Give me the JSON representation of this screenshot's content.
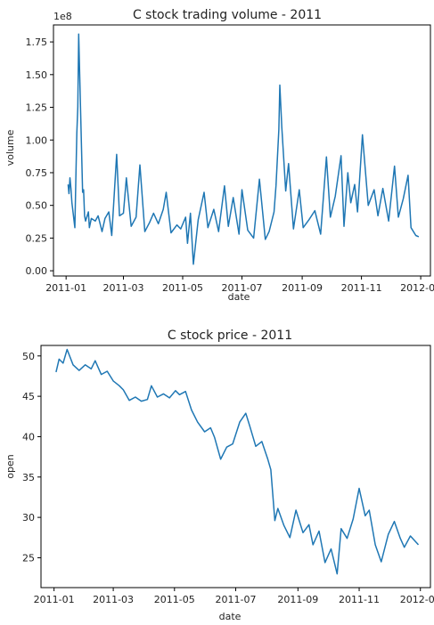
{
  "chart_data": [
    {
      "type": "line",
      "title": "C stock trading volume - 2011",
      "xlabel": "date",
      "ylabel": "volume",
      "offset_text": "1e8",
      "x_ticks": [
        "2011-01",
        "2011-03",
        "2011-05",
        "2011-07",
        "2011-09",
        "2011-11",
        "2012-01"
      ],
      "y_ticks": [
        "0.00",
        "0.25",
        "0.50",
        "0.75",
        "1.00",
        "1.25",
        "1.50",
        "1.75"
      ],
      "ylim": [
        -0.04,
        1.88
      ],
      "xlim": [
        "2010-12-19",
        "2012-01-11"
      ],
      "grid": false,
      "color": "#1f77b4",
      "unit_multiplier": 100000000,
      "series": [
        {
          "x": [
            "2011-01-03",
            "2011-01-04",
            "2011-01-05",
            "2011-01-06",
            "2011-01-07",
            "2011-01-10",
            "2011-01-11",
            "2011-01-12",
            "2011-01-13",
            "2011-01-14",
            "2011-01-18",
            "2011-01-19",
            "2011-01-20",
            "2011-01-21",
            "2011-01-24",
            "2011-01-25",
            "2011-01-27",
            "2011-01-31",
            "2011-02-03",
            "2011-02-07",
            "2011-02-10",
            "2011-02-14",
            "2011-02-17",
            "2011-02-22",
            "2011-02-25",
            "2011-03-01",
            "2011-03-04",
            "2011-03-09",
            "2011-03-14",
            "2011-03-18",
            "2011-03-23",
            "2011-03-28",
            "2011-04-01",
            "2011-04-06",
            "2011-04-11",
            "2011-04-14",
            "2011-04-19",
            "2011-04-25",
            "2011-04-29",
            "2011-05-04",
            "2011-05-06",
            "2011-05-09",
            "2011-05-12",
            "2011-05-17",
            "2011-05-23",
            "2011-05-27",
            "2011-06-02",
            "2011-06-07",
            "2011-06-13",
            "2011-06-17",
            "2011-06-22",
            "2011-06-28",
            "2011-07-01",
            "2011-07-07",
            "2011-07-13",
            "2011-07-19",
            "2011-07-25",
            "2011-07-29",
            "2011-08-03",
            "2011-08-05",
            "2011-08-08",
            "2011-08-09",
            "2011-08-11",
            "2011-08-15",
            "2011-08-18",
            "2011-08-23",
            "2011-08-29",
            "2011-09-02",
            "2011-09-08",
            "2011-09-14",
            "2011-09-20",
            "2011-09-26",
            "2011-09-30",
            "2011-10-05",
            "2011-10-11",
            "2011-10-14",
            "2011-10-18",
            "2011-10-21",
            "2011-10-25",
            "2011-10-28",
            "2011-11-02",
            "2011-11-08",
            "2011-11-14",
            "2011-11-18",
            "2011-11-23",
            "2011-11-29",
            "2011-12-05",
            "2011-12-09",
            "2011-12-14",
            "2011-12-19",
            "2011-12-22",
            "2011-12-27",
            "2011-12-30"
          ],
          "values": [
            0.66,
            0.59,
            0.71,
            0.63,
            0.52,
            0.33,
            0.7,
            1.05,
            1.25,
            1.81,
            0.6,
            0.62,
            0.42,
            0.38,
            0.45,
            0.33,
            0.4,
            0.38,
            0.42,
            0.3,
            0.4,
            0.45,
            0.27,
            0.89,
            0.42,
            0.44,
            0.71,
            0.34,
            0.41,
            0.81,
            0.3,
            0.37,
            0.44,
            0.36,
            0.47,
            0.6,
            0.29,
            0.35,
            0.32,
            0.41,
            0.21,
            0.44,
            0.05,
            0.39,
            0.6,
            0.33,
            0.47,
            0.3,
            0.65,
            0.34,
            0.56,
            0.28,
            0.62,
            0.31,
            0.25,
            0.7,
            0.24,
            0.3,
            0.45,
            0.65,
            1.08,
            1.42,
            1.1,
            0.61,
            0.82,
            0.32,
            0.62,
            0.33,
            0.39,
            0.46,
            0.28,
            0.87,
            0.41,
            0.57,
            0.88,
            0.34,
            0.75,
            0.52,
            0.66,
            0.45,
            1.04,
            0.5,
            0.62,
            0.42,
            0.63,
            0.38,
            0.8,
            0.41,
            0.55,
            0.73,
            0.33,
            0.27,
            0.26
          ]
        }
      ]
    },
    {
      "type": "line",
      "title": "C stock price - 2011",
      "xlabel": "date",
      "ylabel": "open",
      "x_ticks": [
        "2011-01",
        "2011-03",
        "2011-05",
        "2011-07",
        "2011-09",
        "2011-11",
        "2012-01"
      ],
      "y_ticks": [
        "25",
        "30",
        "35",
        "40",
        "45",
        "50"
      ],
      "ylim": [
        21.3,
        51.3
      ],
      "xlim": [
        "2010-12-19",
        "2012-01-11"
      ],
      "grid": false,
      "color": "#1f77b4",
      "series": [
        {
          "x": [
            "2011-01-03",
            "2011-01-06",
            "2011-01-10",
            "2011-01-14",
            "2011-01-20",
            "2011-01-26",
            "2011-02-01",
            "2011-02-07",
            "2011-02-11",
            "2011-02-17",
            "2011-02-23",
            "2011-03-01",
            "2011-03-07",
            "2011-03-11",
            "2011-03-17",
            "2011-03-23",
            "2011-03-29",
            "2011-04-04",
            "2011-04-08",
            "2011-04-14",
            "2011-04-20",
            "2011-04-26",
            "2011-05-02",
            "2011-05-06",
            "2011-05-12",
            "2011-05-18",
            "2011-05-24",
            "2011-05-31",
            "2011-06-06",
            "2011-06-10",
            "2011-06-16",
            "2011-06-22",
            "2011-06-28",
            "2011-07-05",
            "2011-07-11",
            "2011-07-15",
            "2011-07-21",
            "2011-07-27",
            "2011-08-02",
            "2011-08-05",
            "2011-08-09",
            "2011-08-12",
            "2011-08-18",
            "2011-08-24",
            "2011-08-30",
            "2011-09-06",
            "2011-09-12",
            "2011-09-16",
            "2011-09-22",
            "2011-09-28",
            "2011-10-04",
            "2011-10-10",
            "2011-10-14",
            "2011-10-20",
            "2011-10-26",
            "2011-11-01",
            "2011-11-07",
            "2011-11-11",
            "2011-11-17",
            "2011-11-23",
            "2011-11-30",
            "2011-12-06",
            "2011-12-12",
            "2011-12-16",
            "2011-12-22",
            "2011-12-30"
          ],
          "values": [
            48.0,
            49.6,
            49.1,
            50.8,
            48.9,
            48.2,
            48.9,
            48.4,
            49.4,
            47.7,
            48.1,
            46.9,
            46.3,
            45.8,
            44.5,
            44.9,
            44.4,
            44.6,
            46.3,
            44.9,
            45.3,
            44.8,
            45.7,
            45.2,
            45.6,
            43.3,
            41.8,
            40.6,
            41.1,
            39.9,
            37.2,
            38.7,
            39.1,
            41.8,
            42.9,
            41.3,
            38.8,
            39.4,
            37.2,
            35.9,
            29.6,
            31.1,
            29.0,
            27.5,
            30.9,
            28.1,
            29.1,
            26.6,
            28.3,
            24.4,
            26.1,
            23.0,
            28.6,
            27.4,
            29.8,
            33.6,
            30.2,
            30.9,
            26.6,
            24.5,
            27.9,
            29.5,
            27.4,
            26.3,
            27.7,
            26.6
          ]
        }
      ]
    }
  ]
}
